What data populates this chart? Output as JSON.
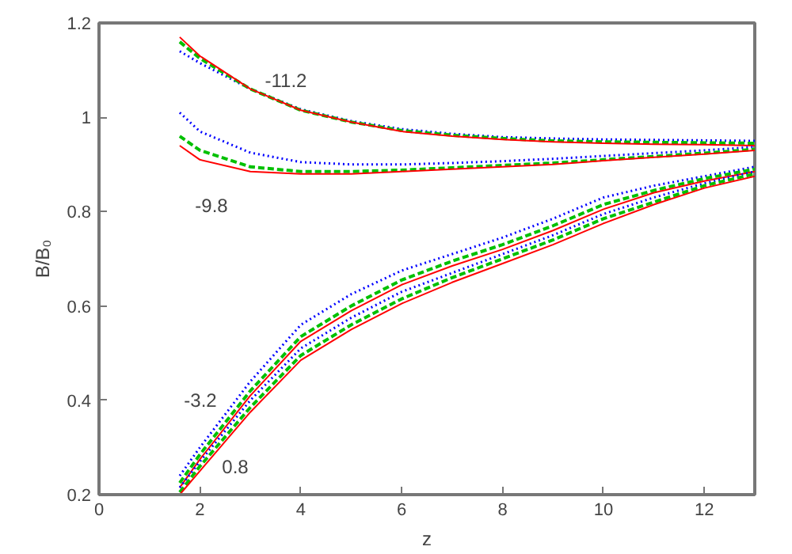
{
  "chart_data": {
    "type": "line",
    "xlabel": "z",
    "ylabel": "B/B₀",
    "x": [
      1.6,
      2,
      3,
      4,
      5,
      6,
      7,
      8,
      9,
      10,
      11,
      12,
      13
    ],
    "xlim": [
      0,
      13
    ],
    "xticks": [
      0,
      2,
      4,
      6,
      8,
      10,
      12
    ],
    "ylim": [
      0.2,
      1.2
    ],
    "yticks": [
      0.2,
      0.4,
      0.6,
      0.8,
      1,
      1.2
    ],
    "grid": false,
    "marker": "none",
    "series": [
      {
        "color": "#0000ff",
        "line_style": "dotted",
        "values": [
          1.14,
          1.115,
          1.06,
          1.017,
          0.992,
          0.975,
          0.965,
          0.958,
          0.955,
          0.953,
          0.952,
          0.951,
          0.95
        ]
      },
      {
        "color": "#00c000",
        "line_style": "dashed",
        "values": [
          1.16,
          1.125,
          1.06,
          1.015,
          0.99,
          0.972,
          0.962,
          0.955,
          0.95,
          0.948,
          0.947,
          0.946,
          0.945
        ]
      },
      {
        "color": "#ff0000",
        "line_style": "solid",
        "values": [
          1.17,
          1.13,
          1.06,
          1.015,
          0.99,
          0.97,
          0.96,
          0.953,
          0.948,
          0.945,
          0.943,
          0.942,
          0.94
        ]
      },
      {
        "color": "#0000ff",
        "line_style": "dotted",
        "values": [
          1.01,
          0.97,
          0.925,
          0.905,
          0.9,
          0.9,
          0.903,
          0.907,
          0.912,
          0.918,
          0.924,
          0.93,
          0.937
        ]
      },
      {
        "color": "#00c000",
        "line_style": "dashed",
        "values": [
          0.96,
          0.93,
          0.895,
          0.885,
          0.885,
          0.888,
          0.893,
          0.898,
          0.903,
          0.91,
          0.917,
          0.924,
          0.932
        ]
      },
      {
        "color": "#ff0000",
        "line_style": "solid",
        "values": [
          0.94,
          0.91,
          0.885,
          0.88,
          0.88,
          0.885,
          0.89,
          0.895,
          0.9,
          0.908,
          0.915,
          0.922,
          0.93
        ]
      },
      {
        "color": "#0000ff",
        "line_style": "dotted",
        "values": [
          0.24,
          0.3,
          0.44,
          0.56,
          0.625,
          0.675,
          0.71,
          0.745,
          0.785,
          0.83,
          0.855,
          0.875,
          0.895
        ]
      },
      {
        "color": "#00c000",
        "line_style": "dashed",
        "values": [
          0.225,
          0.285,
          0.42,
          0.535,
          0.6,
          0.655,
          0.695,
          0.73,
          0.77,
          0.815,
          0.845,
          0.87,
          0.89
        ]
      },
      {
        "color": "#ff0000",
        "line_style": "solid",
        "values": [
          0.215,
          0.275,
          0.41,
          0.525,
          0.59,
          0.645,
          0.685,
          0.72,
          0.76,
          0.805,
          0.84,
          0.865,
          0.885
        ]
      },
      {
        "color": "#0000ff",
        "line_style": "dotted",
        "values": [
          0.215,
          0.27,
          0.4,
          0.51,
          0.575,
          0.63,
          0.67,
          0.71,
          0.75,
          0.795,
          0.83,
          0.86,
          0.885
        ]
      },
      {
        "color": "#00c000",
        "line_style": "dashed",
        "values": [
          0.205,
          0.26,
          0.385,
          0.495,
          0.56,
          0.615,
          0.66,
          0.7,
          0.74,
          0.785,
          0.82,
          0.855,
          0.88
        ]
      },
      {
        "color": "#ff0000",
        "line_style": "solid",
        "values": [
          0.2,
          0.25,
          0.375,
          0.485,
          0.55,
          0.605,
          0.65,
          0.69,
          0.73,
          0.775,
          0.815,
          0.85,
          0.875
        ]
      }
    ],
    "annotations": [
      "-11.2",
      "-9.8",
      "-3.2",
      "0.8"
    ]
  }
}
